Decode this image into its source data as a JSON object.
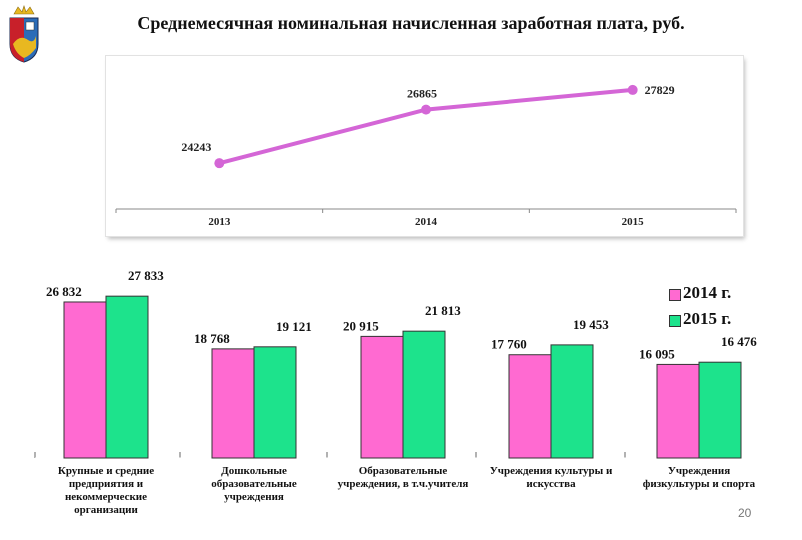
{
  "page": {
    "title": "Среднемесячная номинальная начисленная заработная плата, руб.",
    "page_number": "20"
  },
  "colors": {
    "line": "#d466d6",
    "series_2014": "#ff6ad1",
    "series_2015": "#1de38c",
    "logo_red": "#c8202a",
    "logo_blue": "#2b6cb8",
    "logo_gold": "#e8b820"
  },
  "icons": {
    "logo": "coat-of-arms-icon"
  },
  "chart_data": [
    {
      "type": "line",
      "title": "",
      "x": [
        "2013",
        "2014",
        "2015"
      ],
      "values": [
        24243,
        26865,
        27829
      ],
      "data_labels": [
        "24243",
        "26865",
        "27829"
      ],
      "ylim": [
        22000,
        29000
      ],
      "grid": false
    },
    {
      "type": "bar",
      "categories": [
        [
          "Крупные и средние",
          "предприятия и",
          "некоммерческие",
          "организации"
        ],
        [
          "Дошкольные",
          "образовательные",
          "учреждения"
        ],
        [
          "Образовательные",
          "учреждения, в т.ч.учителя"
        ],
        [
          "Учреждения культуры и",
          "искусства"
        ],
        [
          "Учреждения",
          "физкультуры и спорта"
        ]
      ],
      "series": [
        {
          "name": "2014 г.",
          "values": [
            26832,
            18768,
            20915,
            17760,
            16095
          ],
          "labels": [
            "26 832",
            "18 768",
            "20 915",
            "17 760",
            "16 095"
          ]
        },
        {
          "name": "2015 г.",
          "values": [
            27833,
            19121,
            21813,
            19453,
            16476
          ],
          "labels": [
            "27 833",
            "19 121",
            "21 813",
            "19 453",
            "16 476"
          ]
        }
      ],
      "ylim": [
        0,
        30000
      ],
      "legend": "top-right"
    }
  ]
}
